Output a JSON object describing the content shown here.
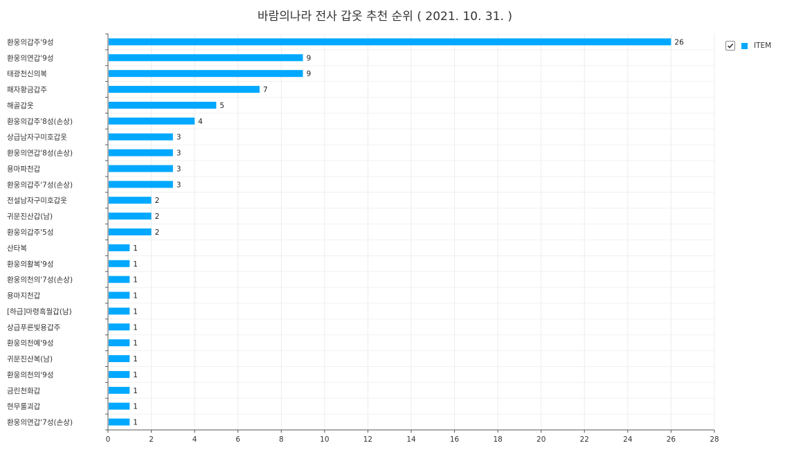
{
  "chart_data": {
    "type": "bar",
    "orientation": "horizontal",
    "title": "바람의나라 전사 갑옷 추천 순위 ( 2021. 10. 31. )",
    "categories": [
      "환웅의갑주'9성",
      "환웅의연갑'9성",
      "태광천신의복",
      "패자황금갑주",
      "해골갑옷",
      "환웅의갑주'8성(손상)",
      "상급남자구미호갑옷",
      "환웅의연갑'8성(손상)",
      "용마파천갑",
      "환웅의갑주'7성(손상)",
      "전설남자구미호갑옷",
      "귀문진산갑(남)",
      "환웅의갑주'5성",
      "산타복",
      "환웅의활복'9성",
      "환웅의천의'7성(손상)",
      "용마지천갑",
      "[하급]마령흑월갑(남)",
      "상급푸른빛용갑주",
      "환웅의천예'9성",
      "귀문진산복(남)",
      "환웅의천의'9성",
      "금린천화갑",
      "현무룰괴갑",
      "환웅의연갑'7성(손상)"
    ],
    "series": [
      {
        "name": "ITEM",
        "color": "#00a8ff",
        "values": [
          26,
          9,
          9,
          7,
          5,
          4,
          3,
          3,
          3,
          3,
          2,
          2,
          2,
          1,
          1,
          1,
          1,
          1,
          1,
          1,
          1,
          1,
          1,
          1,
          1
        ]
      }
    ],
    "xlim": [
      0,
      28
    ],
    "xticks": [
      "0",
      "2",
      "4",
      "6",
      "8",
      "10",
      "12",
      "14",
      "16",
      "18",
      "20",
      "22",
      "24",
      "26",
      "28"
    ],
    "grid": true,
    "legend_position": "top-right",
    "legend_checked": true
  }
}
